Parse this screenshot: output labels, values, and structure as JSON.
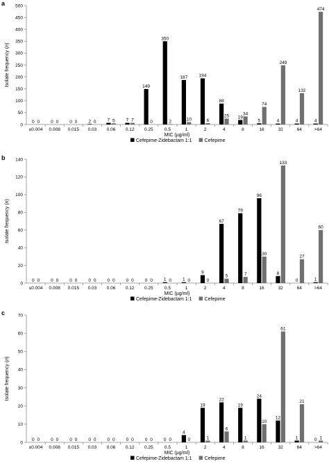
{
  "colors": {
    "series1": "#000000",
    "series2": "#707070",
    "axis": "#8a8a8a"
  },
  "chart_data": [
    {
      "panel": "a",
      "type": "bar",
      "ylabel": "Isolate frequency (n)",
      "xlabel": "MIC (µg/ml)",
      "ylim": [
        0,
        500
      ],
      "yticks": [
        0,
        50,
        100,
        150,
        200,
        250,
        300,
        350,
        400,
        450,
        500
      ],
      "categories": [
        "≤0.004",
        "0.008",
        "0.015",
        "0.03",
        "0.06",
        "0.12",
        "0.25",
        "0.5",
        "1",
        "2",
        "4",
        "8",
        "16",
        "32",
        "64",
        ">64"
      ],
      "series": [
        {
          "name": "Cefepime-Zidebactam 1:1",
          "values": [
            0,
            0,
            0,
            2,
            7,
            7,
            149,
            350,
            187,
            194,
            88,
            19,
            5,
            4,
            4,
            4
          ]
        },
        {
          "name": "Cefepime",
          "values": [
            0,
            0,
            0,
            0,
            5,
            7,
            0,
            2,
            10,
            6,
            25,
            34,
            74,
            249,
            132,
            474
          ]
        }
      ],
      "legend": "bottom"
    },
    {
      "panel": "b",
      "type": "bar",
      "ylabel": "Isolate frequency (n)",
      "xlabel": "MIC (µg/ml)",
      "ylim": [
        0,
        140
      ],
      "yticks": [
        0,
        20,
        40,
        60,
        80,
        100,
        120,
        140
      ],
      "categories": [
        "≤0.004",
        "0.008",
        "0.015",
        "0.03",
        "0.06",
        "0.12",
        "0.25",
        "0.5",
        "1",
        "2",
        "4",
        "8",
        "16",
        "32",
        "64",
        ">64"
      ],
      "series": [
        {
          "name": "Cefepime-Zidebactam 1:1",
          "values": [
            0,
            0,
            0,
            0,
            0,
            0,
            0,
            1,
            1,
            9,
            67,
            79,
            96,
            8,
            0,
            1
          ]
        },
        {
          "name": "Cefepime",
          "values": [
            0,
            0,
            0,
            0,
            0,
            0,
            0,
            0,
            0,
            0,
            5,
            7,
            30,
            133,
            27,
            60
          ]
        }
      ],
      "legend": "bottom"
    },
    {
      "panel": "c",
      "type": "bar",
      "ylabel": "Isolate frequency (n)",
      "xlabel": "MIC (µg/ml)",
      "ylim": [
        0,
        70
      ],
      "yticks": [
        0,
        10,
        20,
        30,
        40,
        50,
        60,
        70
      ],
      "categories": [
        "≤0.004",
        "0.008",
        "0.015",
        "0.03",
        "0.06",
        "0.12",
        "0.25",
        "0.5",
        "1",
        "2",
        "4",
        "8",
        "16",
        "32",
        "64",
        ">64"
      ],
      "series": [
        {
          "name": "Cefepime-Zidebactam 1:1",
          "values": [
            0,
            0,
            0,
            0,
            0,
            0,
            0,
            0,
            4,
            19,
            22,
            19,
            24,
            12,
            1,
            0
          ]
        },
        {
          "name": "Cefepime",
          "values": [
            0,
            0,
            0,
            0,
            0,
            0,
            0,
            0,
            0,
            1,
            6,
            1,
            10,
            61,
            21,
            1
          ]
        }
      ],
      "legend": "bottom"
    }
  ]
}
